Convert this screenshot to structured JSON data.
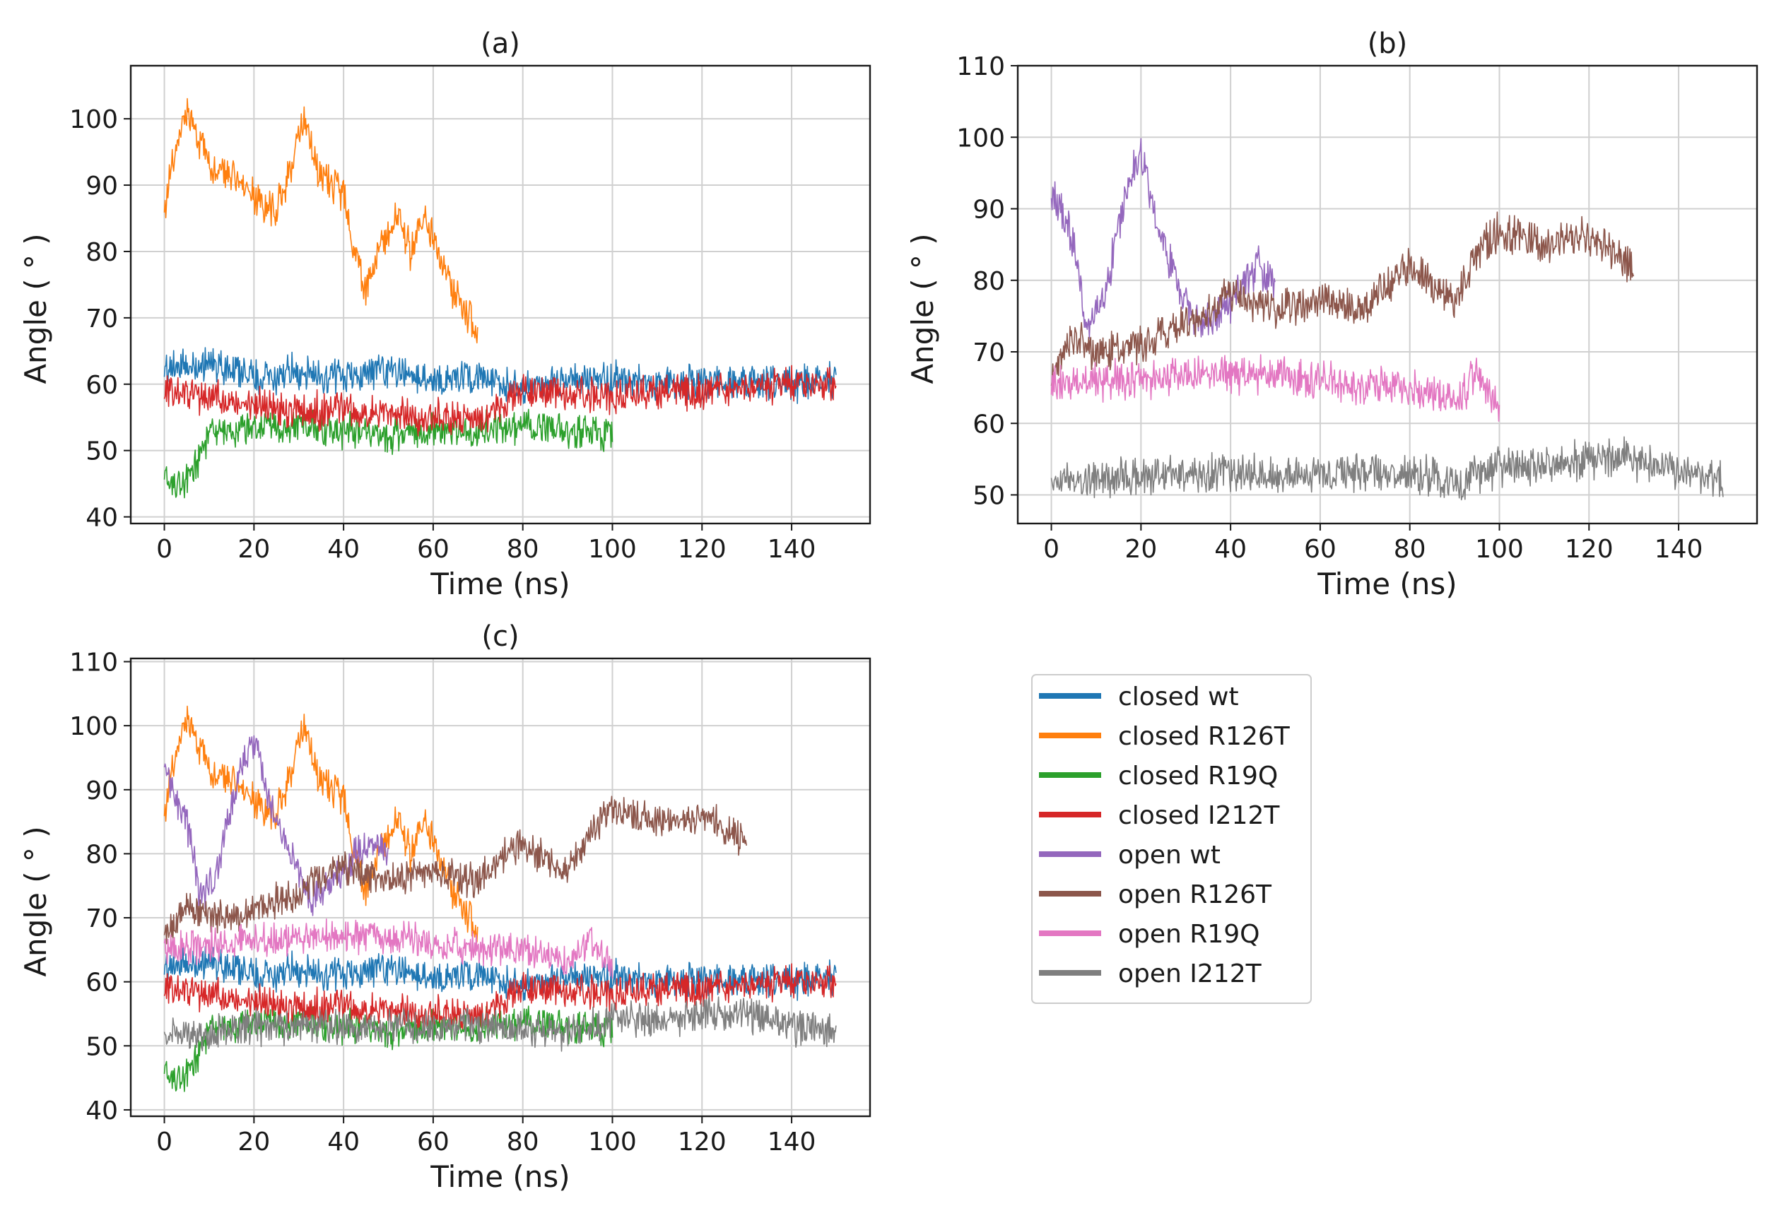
{
  "chart_data": [
    {
      "type": "line",
      "title": "(a)",
      "xlabel": "Time (ns)",
      "ylabel": "Angle ( ° )",
      "xlim": [
        -7.5,
        157.5
      ],
      "ylim": [
        39,
        108
      ],
      "xticks": [
        0,
        20,
        40,
        60,
        80,
        100,
        120,
        140
      ],
      "yticks": [
        40,
        50,
        60,
        70,
        80,
        90,
        100
      ],
      "grid": true,
      "series": [
        {
          "name": "closed wt",
          "color": "#1f77b4",
          "x": [
            0,
            10,
            20,
            30,
            40,
            50,
            60,
            70,
            80,
            90,
            100,
            110,
            120,
            130,
            140,
            150
          ],
          "values": [
            62,
            63,
            61,
            62,
            61,
            62,
            61,
            61,
            59,
            61,
            61,
            60,
            60,
            60,
            60,
            61
          ]
        },
        {
          "name": "closed R126T",
          "color": "#ff7f0e",
          "x": [
            0,
            3,
            5,
            8,
            12,
            16,
            20,
            25,
            28,
            31,
            35,
            40,
            42,
            45,
            48,
            52,
            55,
            58,
            62,
            65,
            68,
            70
          ],
          "values": [
            87,
            97,
            101,
            96,
            92,
            92,
            88,
            86,
            92,
            100,
            91,
            89,
            81,
            74,
            80,
            86,
            80,
            86,
            78,
            73,
            70,
            67
          ]
        },
        {
          "name": "closed R19Q",
          "color": "#2ca02c",
          "x": [
            0,
            3,
            6,
            10,
            20,
            30,
            40,
            50,
            60,
            70,
            80,
            90,
            100
          ],
          "values": [
            46,
            44,
            46,
            53,
            53,
            54,
            53,
            52,
            53,
            53,
            54,
            53,
            52
          ]
        },
        {
          "name": "closed I212T",
          "color": "#d62728",
          "x": [
            0,
            10,
            20,
            30,
            40,
            50,
            60,
            70,
            80,
            90,
            100,
            110,
            120,
            130,
            140,
            150
          ],
          "values": [
            59,
            58,
            57,
            56,
            56,
            56,
            55,
            55,
            59,
            59,
            58,
            59,
            59,
            59,
            60,
            60
          ]
        }
      ]
    },
    {
      "type": "line",
      "title": "(b)",
      "xlabel": "Time (ns)",
      "ylabel": "Angle ( ° )",
      "xlim": [
        -7.5,
        157.5
      ],
      "ylim": [
        46,
        110
      ],
      "xticks": [
        0,
        20,
        40,
        60,
        80,
        100,
        120,
        140
      ],
      "yticks": [
        50,
        60,
        70,
        80,
        90,
        100,
        110
      ],
      "grid": true,
      "series": [
        {
          "name": "open wt",
          "color": "#9467bd",
          "x": [
            0,
            2,
            5,
            8,
            12,
            15,
            18,
            20,
            23,
            26,
            30,
            33,
            36,
            40,
            43,
            46,
            50
          ],
          "values": [
            93,
            90,
            85,
            73,
            78,
            88,
            95,
            98,
            90,
            83,
            77,
            73,
            75,
            77,
            80,
            82,
            80
          ]
        },
        {
          "name": "open R126T",
          "color": "#8c564b",
          "x": [
            0,
            5,
            10,
            20,
            30,
            40,
            50,
            60,
            70,
            80,
            85,
            90,
            95,
            100,
            110,
            120,
            125,
            130
          ],
          "values": [
            67,
            72,
            70,
            71,
            74,
            78,
            76,
            77,
            76,
            82,
            79,
            77,
            84,
            87,
            85,
            86,
            84,
            82
          ]
        },
        {
          "name": "open R19Q",
          "color": "#e377c2",
          "x": [
            0,
            10,
            20,
            30,
            40,
            50,
            60,
            70,
            80,
            90,
            95,
            100
          ],
          "values": [
            65,
            66,
            66,
            67,
            67,
            67,
            66,
            65,
            65,
            63,
            67,
            62
          ]
        },
        {
          "name": "open I212T",
          "color": "#7f7f7f",
          "x": [
            0,
            10,
            20,
            30,
            40,
            50,
            60,
            70,
            80,
            90,
            100,
            110,
            120,
            130,
            140,
            150
          ],
          "values": [
            52,
            52,
            53,
            53,
            53,
            53,
            53,
            53,
            53,
            52,
            54,
            54,
            55,
            55,
            53,
            52
          ]
        }
      ]
    },
    {
      "type": "line",
      "title": "(c)",
      "xlabel": "Time (ns)",
      "ylabel": "Angle ( ° )",
      "xlim": [
        -7.5,
        157.5
      ],
      "ylim": [
        39,
        110.5
      ],
      "xticks": [
        0,
        20,
        40,
        60,
        80,
        100,
        120,
        140
      ],
      "yticks": [
        40,
        50,
        60,
        70,
        80,
        90,
        100,
        110
      ],
      "grid": true,
      "series": [
        {
          "name": "closed wt",
          "color": "#1f77b4",
          "x": [
            0,
            10,
            20,
            30,
            40,
            50,
            60,
            70,
            80,
            90,
            100,
            110,
            120,
            130,
            140,
            150
          ],
          "values": [
            62,
            63,
            61,
            62,
            61,
            62,
            61,
            61,
            59,
            61,
            61,
            60,
            60,
            60,
            60,
            61
          ]
        },
        {
          "name": "closed R126T",
          "color": "#ff7f0e",
          "x": [
            0,
            3,
            5,
            8,
            12,
            16,
            20,
            25,
            28,
            31,
            35,
            40,
            42,
            45,
            48,
            52,
            55,
            58,
            62,
            65,
            68,
            70
          ],
          "values": [
            87,
            97,
            101,
            96,
            92,
            92,
            88,
            86,
            92,
            100,
            91,
            89,
            81,
            74,
            80,
            86,
            80,
            86,
            78,
            73,
            70,
            67
          ]
        },
        {
          "name": "closed R19Q",
          "color": "#2ca02c",
          "x": [
            0,
            3,
            6,
            10,
            20,
            30,
            40,
            50,
            60,
            70,
            80,
            90,
            100
          ],
          "values": [
            46,
            44,
            46,
            53,
            53,
            54,
            53,
            52,
            53,
            53,
            54,
            53,
            52
          ]
        },
        {
          "name": "closed I212T",
          "color": "#d62728",
          "x": [
            0,
            10,
            20,
            30,
            40,
            50,
            60,
            70,
            80,
            90,
            100,
            110,
            120,
            130,
            140,
            150
          ],
          "values": [
            59,
            58,
            57,
            56,
            56,
            56,
            55,
            55,
            59,
            59,
            58,
            59,
            59,
            59,
            60,
            60
          ]
        },
        {
          "name": "open wt",
          "color": "#9467bd",
          "x": [
            0,
            2,
            5,
            8,
            12,
            15,
            18,
            20,
            23,
            26,
            30,
            33,
            36,
            40,
            43,
            46,
            50
          ],
          "values": [
            93,
            90,
            85,
            73,
            78,
            88,
            95,
            98,
            90,
            83,
            77,
            73,
            75,
            77,
            80,
            82,
            80
          ]
        },
        {
          "name": "open R126T",
          "color": "#8c564b",
          "x": [
            0,
            5,
            10,
            20,
            30,
            40,
            50,
            60,
            70,
            80,
            85,
            90,
            95,
            100,
            110,
            120,
            125,
            130
          ],
          "values": [
            67,
            72,
            70,
            71,
            74,
            78,
            76,
            77,
            76,
            82,
            79,
            77,
            84,
            87,
            85,
            86,
            84,
            82
          ]
        },
        {
          "name": "open R19Q",
          "color": "#e377c2",
          "x": [
            0,
            10,
            20,
            30,
            40,
            50,
            60,
            70,
            80,
            90,
            95,
            100
          ],
          "values": [
            65,
            66,
            66,
            67,
            67,
            67,
            66,
            65,
            65,
            63,
            67,
            62
          ]
        },
        {
          "name": "open I212T",
          "color": "#7f7f7f",
          "x": [
            0,
            10,
            20,
            30,
            40,
            50,
            60,
            70,
            80,
            90,
            100,
            110,
            120,
            130,
            140,
            150
          ],
          "values": [
            52,
            52,
            53,
            53,
            53,
            53,
            53,
            53,
            53,
            52,
            54,
            54,
            55,
            55,
            53,
            52
          ]
        }
      ]
    }
  ],
  "legend": {
    "placement": "lower-right",
    "entries": [
      {
        "label": "closed wt",
        "color": "#1f77b4"
      },
      {
        "label": "closed R126T",
        "color": "#ff7f0e"
      },
      {
        "label": "closed R19Q",
        "color": "#2ca02c"
      },
      {
        "label": "closed I212T",
        "color": "#d62728"
      },
      {
        "label": "open wt",
        "color": "#9467bd"
      },
      {
        "label": "open R126T",
        "color": "#8c564b"
      },
      {
        "label": "open R19Q",
        "color": "#e377c2"
      },
      {
        "label": "open I212T",
        "color": "#7f7f7f"
      }
    ]
  }
}
